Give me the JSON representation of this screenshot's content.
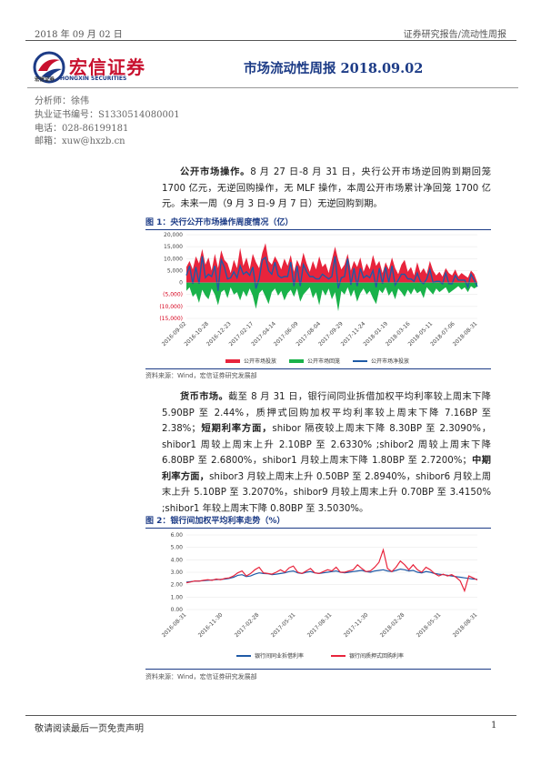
{
  "header": {
    "date": "2018 年 09 月 02 日",
    "category": "证券研究报告/流动性周报"
  },
  "logo": {
    "name_cn": "宏信证券",
    "name_small": "宏信证券",
    "name_en": "HONGXIN SECURITIES",
    "brand_color": "#c8102e"
  },
  "title": "市场流动性周报 2018.09.02",
  "analyst": {
    "name_line": "分析师：徐伟",
    "cert_line": "执业证书编号：S1330514080001",
    "phone_line": "电话：028-86199181",
    "email_line": "邮箱：xuw@hxzb.cn"
  },
  "para1": {
    "bold": "公开市场操作。",
    "text": "8 月 27 日-8 月 31 日，央行公开市场逆回购到期回笼 1700 亿元，无逆回购操作，无 MLF 操作，本周公开市场累计净回笼 1700 亿元。未来一周（9 月 3 日-9 月 7 日）无逆回购到期。"
  },
  "figure1": {
    "title": "图 1：央行公开市场操作周度情况（亿）",
    "source": "资料来源：Wind，宏信证券研究发展部"
  },
  "para2": {
    "bold1": "货币市场。",
    "text1": "截至 8 月 31 日，银行间同业拆借加权平均利率较上周末下降 5.90BP 至 2.44%，质押式回购加权平均利率较上周末下降 7.16BP 至 2.38%；",
    "bold2": "短期利率方面，",
    "text2": "shibor 隔夜较上周末下降 8.30BP 至 2.3090%，shibor1 周较上周末上升 2.10BP 至 2.6330% ;shibor2 周较上周末下降 6.80BP 至 2.6800%，shibor1 月较上周末下降 1.80BP 至 2.7200%；",
    "bold3": "中期利率方面，",
    "text3": "shibor3 月较上周末上升 0.50BP 至 2.8940%，shibor6 月较上周末上升 5.10BP 至 3.2070%，shibor9 月较上周末上升 0.70BP 至 3.4150% ;shibor1 年较上周末下降 0.80BP 至 3.5030%。"
  },
  "figure2": {
    "title": "图 2：银行间加权平均利率走势（%）",
    "source": "资料来源：Wind，宏信证券研究发展部"
  },
  "footer": {
    "disclaimer": "敬请阅读最后一页免责声明",
    "page": "1"
  },
  "chart_data": [
    {
      "type": "bar",
      "title": "",
      "ylim": [
        -15000,
        20000
      ],
      "yticks": [
        "20,000",
        "15,000",
        "10,000",
        "5,000",
        "0",
        "(5,000)",
        "(10,000)",
        "(15,000)"
      ],
      "xticks": [
        "2016-09-02",
        "2016-10-28",
        "2016-12-23",
        "2017-02-17",
        "2017-04-14",
        "2017-06-09",
        "2017-08-04",
        "2017-09-29",
        "2017-11-24",
        "2018-01-19",
        "2018-03-16",
        "2018-05-11",
        "2018-07-06",
        "2018-08-31"
      ],
      "series": [
        {
          "name": "公开市场投放",
          "color": "#e8243c",
          "values": [
            6500,
            9000,
            5500,
            11000,
            8000,
            14000,
            7500,
            10500,
            5000,
            12000,
            6000,
            13500,
            9500,
            8000,
            4000,
            9500,
            6000,
            14500,
            7000,
            10500,
            5500,
            12000,
            8500,
            6000,
            12500,
            16500,
            9000,
            7500,
            11000,
            8500,
            5500,
            10000,
            7000,
            11500,
            4500,
            9500,
            6500,
            12500,
            8000,
            4500,
            9000,
            5500,
            11000,
            6500,
            8000,
            4000,
            9500,
            15000,
            9500,
            5500,
            7500,
            12000,
            5000,
            9000,
            6500,
            10500,
            4500,
            8000,
            5500,
            11500,
            7000,
            9000,
            4000,
            8500,
            5500,
            10500,
            6000,
            3500,
            7500,
            9500,
            4500,
            6500,
            3000,
            8500,
            4000,
            6000,
            3500,
            9000,
            5000,
            3000,
            4500,
            2500,
            6000,
            4000,
            3000,
            5500,
            2500,
            4000,
            3000,
            2000,
            5000,
            3500,
            0
          ]
        },
        {
          "name": "公开市场回笼",
          "color": "#19b24a",
          "values": [
            -3500,
            -2000,
            -6000,
            -4500,
            -8500,
            -3000,
            -5500,
            -7000,
            -2500,
            -5000,
            -9500,
            -4000,
            -3000,
            -6500,
            -2000,
            -5000,
            -4000,
            -7500,
            -3500,
            -6000,
            -2500,
            -5500,
            -11000,
            -4500,
            -3000,
            -6000,
            -9000,
            -4000,
            -2500,
            -5500,
            -3500,
            -7500,
            -4500,
            -3000,
            -6000,
            -2500,
            -8000,
            -5000,
            -3500,
            -2000,
            -6500,
            -4000,
            -9500,
            -3000,
            -5500,
            -2500,
            -7000,
            -4000,
            -12000,
            -3500,
            -5000,
            -2000,
            -6000,
            -3000,
            -8000,
            -4500,
            -2500,
            -5000,
            -3500,
            -6500,
            -9000,
            -3000,
            -4500,
            -2000,
            -5500,
            -3500,
            -7000,
            -2500,
            -4000,
            -6000,
            -3000,
            -5000,
            -2500,
            -4500,
            -3500,
            -6500,
            -2000,
            -3500,
            -5000,
            -2500,
            -4000,
            -3000,
            -2000,
            -4500,
            -3500,
            -2500,
            -1500,
            -3000,
            -2000,
            -4000,
            -1500,
            -2500,
            -1700
          ]
        },
        {
          "name": "公开市场净投放",
          "color": "#1f5aa6",
          "values": [
            3000,
            7000,
            -500,
            6500,
            -500,
            11000,
            2000,
            3500,
            2500,
            7000,
            -3500,
            9500,
            6500,
            1500,
            2000,
            4500,
            2000,
            7000,
            3500,
            4500,
            3000,
            6500,
            -2500,
            1500,
            9500,
            10500,
            5000,
            3500,
            8500,
            3000,
            2000,
            2500,
            2500,
            8500,
            -1500,
            7000,
            -1500,
            7500,
            4500,
            2500,
            2500,
            1500,
            1500,
            3500,
            2500,
            1500,
            2500,
            11000,
            -2500,
            2000,
            2500,
            10000,
            -1000,
            6000,
            -1500,
            6000,
            2000,
            3000,
            2000,
            5000,
            -2000,
            6000,
            -500,
            6500,
            0,
            7000,
            -1000,
            1000,
            3500,
            3500,
            1500,
            1500,
            500,
            4000,
            500,
            -500,
            1500,
            5500,
            0,
            500,
            500,
            -500,
            4000,
            -500,
            -500,
            3000,
            1000,
            1000,
            1000,
            -2000,
            3500,
            1000,
            -1700
          ]
        }
      ]
    },
    {
      "type": "line",
      "title": "",
      "ylim": [
        0,
        6
      ],
      "yticks": [
        "6.00",
        "5.00",
        "4.00",
        "3.00",
        "2.00",
        "1.00",
        "0.00"
      ],
      "xticks": [
        "2016-08-31",
        "2016-11-30",
        "2017-02-28",
        "2017-05-31",
        "2017-08-31",
        "2017-11-30",
        "2018-02-28",
        "2018-05-31",
        "2018-08-31"
      ],
      "series": [
        {
          "name": "银行间同业拆借利率",
          "color": "#1f5aa6",
          "values": [
            2.2,
            2.25,
            2.28,
            2.3,
            2.32,
            2.35,
            2.38,
            2.4,
            2.42,
            2.45,
            2.5,
            2.6,
            2.75,
            2.8,
            2.65,
            2.7,
            2.85,
            2.95,
            2.9,
            2.88,
            2.8,
            2.85,
            2.9,
            2.95,
            3.05,
            3.1,
            2.95,
            2.9,
            3.0,
            3.05,
            2.95,
            2.9,
            2.95,
            3.0,
            3.05,
            3.1,
            3.0,
            2.95,
            3.0,
            3.05,
            3.1,
            3.15,
            3.05,
            3.0,
            3.1,
            3.15,
            3.2,
            3.1,
            3.05,
            3.15,
            3.25,
            3.2,
            3.1,
            3.15,
            3.0,
            2.95,
            3.05,
            3.0,
            2.9,
            2.85,
            2.8,
            2.75,
            2.7,
            2.65,
            2.6,
            2.55,
            2.5,
            2.45,
            2.44
          ]
        },
        {
          "name": "银行间质押式回购利率",
          "color": "#e8243c",
          "values": [
            2.15,
            2.22,
            2.3,
            2.28,
            2.35,
            2.4,
            2.35,
            2.45,
            2.4,
            2.5,
            2.55,
            2.7,
            2.95,
            3.1,
            2.7,
            2.9,
            3.2,
            3.4,
            2.95,
            2.9,
            2.85,
            3.0,
            3.2,
            3.0,
            3.35,
            3.5,
            3.0,
            2.9,
            3.1,
            3.3,
            2.95,
            2.9,
            3.05,
            3.2,
            3.1,
            3.4,
            3.0,
            3.0,
            3.1,
            3.2,
            3.6,
            3.3,
            3.05,
            3.1,
            3.4,
            3.8,
            4.8,
            3.3,
            3.05,
            3.4,
            3.9,
            3.6,
            3.2,
            3.6,
            3.2,
            3.0,
            3.4,
            3.2,
            2.9,
            2.7,
            2.85,
            2.7,
            2.8,
            2.6,
            2.3,
            1.5,
            2.7,
            2.55,
            2.38
          ]
        }
      ]
    }
  ]
}
